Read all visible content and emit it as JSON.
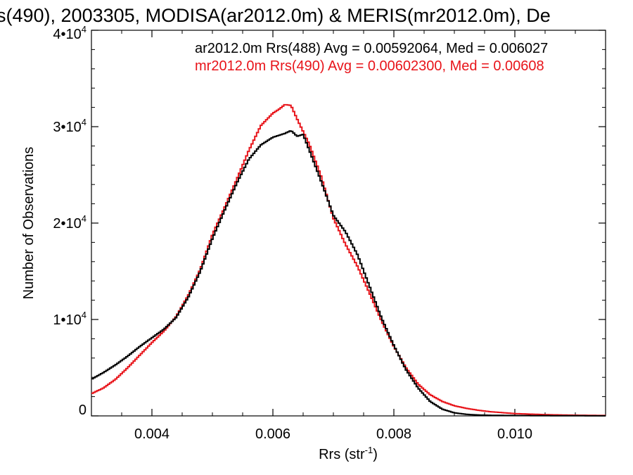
{
  "chart_data": {
    "type": "line",
    "title": "s(490), 2003305, MODISA(ar2012.0m) & MERIS(mr2012.0m), De",
    "xlabel": "Rrs (str",
    "xlabel_sup": "-1",
    "xlabel_close": ")",
    "ylabel": "Number of Observations",
    "xlim": [
      0.003,
      0.0115
    ],
    "ylim": [
      0,
      40000
    ],
    "xticks": [
      {
        "value": 0.004,
        "label": "0.004"
      },
      {
        "value": 0.006,
        "label": "0.006"
      },
      {
        "value": 0.008,
        "label": "0.008"
      },
      {
        "value": 0.01,
        "label": "0.010"
      }
    ],
    "yticks": [
      {
        "value": 0,
        "base": "0",
        "exp": ""
      },
      {
        "value": 10000,
        "base": "1•10",
        "exp": "4"
      },
      {
        "value": 20000,
        "base": "2•10",
        "exp": "4"
      },
      {
        "value": 30000,
        "base": "3•10",
        "exp": "4"
      },
      {
        "value": 40000,
        "base": "4•10",
        "exp": "4"
      }
    ],
    "legend_placement": "top-right",
    "series": [
      {
        "name": "ar2012.0m Rrs(488) Avg = 0.00592064, Med = 0.006027",
        "color": "#000000",
        "points": [
          [
            0.003,
            3800
          ],
          [
            0.0032,
            4500
          ],
          [
            0.0034,
            5300
          ],
          [
            0.0036,
            6200
          ],
          [
            0.0038,
            7200
          ],
          [
            0.004,
            8100
          ],
          [
            0.0042,
            9000
          ],
          [
            0.0044,
            10200
          ],
          [
            0.0046,
            12300
          ],
          [
            0.0048,
            15000
          ],
          [
            0.005,
            18400
          ],
          [
            0.0052,
            21300
          ],
          [
            0.0054,
            24100
          ],
          [
            0.0056,
            26600
          ],
          [
            0.0058,
            28100
          ],
          [
            0.006,
            28900
          ],
          [
            0.0062,
            29300
          ],
          [
            0.0063,
            29600
          ],
          [
            0.0064,
            29000
          ],
          [
            0.0065,
            29200
          ],
          [
            0.0066,
            27600
          ],
          [
            0.0068,
            24300
          ],
          [
            0.007,
            20800
          ],
          [
            0.0072,
            19100
          ],
          [
            0.0074,
            16700
          ],
          [
            0.0076,
            13400
          ],
          [
            0.0078,
            10100
          ],
          [
            0.008,
            7300
          ],
          [
            0.0082,
            4800
          ],
          [
            0.0084,
            2900
          ],
          [
            0.0086,
            1500
          ],
          [
            0.0088,
            700
          ],
          [
            0.009,
            320
          ],
          [
            0.0092,
            160
          ],
          [
            0.0094,
            90
          ],
          [
            0.0096,
            60
          ],
          [
            0.01,
            40
          ],
          [
            0.0105,
            25
          ],
          [
            0.011,
            15
          ],
          [
            0.0115,
            10
          ]
        ]
      },
      {
        "name": "mr2012.0m Rrs(490) Avg = 0.00602300, Med = 0.00608",
        "color": "#e8141a",
        "points": [
          [
            0.003,
            2300
          ],
          [
            0.0032,
            2900
          ],
          [
            0.0034,
            3800
          ],
          [
            0.0036,
            5000
          ],
          [
            0.0038,
            6300
          ],
          [
            0.004,
            7600
          ],
          [
            0.0042,
            8800
          ],
          [
            0.0044,
            10300
          ],
          [
            0.0046,
            12500
          ],
          [
            0.0048,
            15200
          ],
          [
            0.005,
            18800
          ],
          [
            0.0052,
            21600
          ],
          [
            0.0054,
            24500
          ],
          [
            0.0056,
            27500
          ],
          [
            0.0058,
            30100
          ],
          [
            0.006,
            31400
          ],
          [
            0.0061,
            31800
          ],
          [
            0.0062,
            32300
          ],
          [
            0.0063,
            32200
          ],
          [
            0.0064,
            30800
          ],
          [
            0.0066,
            28200
          ],
          [
            0.0068,
            24800
          ],
          [
            0.007,
            20500
          ],
          [
            0.0072,
            17800
          ],
          [
            0.0074,
            15500
          ],
          [
            0.0076,
            12700
          ],
          [
            0.0078,
            9800
          ],
          [
            0.008,
            7200
          ],
          [
            0.0082,
            5000
          ],
          [
            0.0084,
            3300
          ],
          [
            0.0086,
            2200
          ],
          [
            0.0088,
            1500
          ],
          [
            0.009,
            1050
          ],
          [
            0.0092,
            780
          ],
          [
            0.0094,
            580
          ],
          [
            0.0096,
            430
          ],
          [
            0.01,
            240
          ],
          [
            0.0105,
            130
          ],
          [
            0.011,
            70
          ],
          [
            0.0115,
            40
          ]
        ]
      }
    ]
  }
}
